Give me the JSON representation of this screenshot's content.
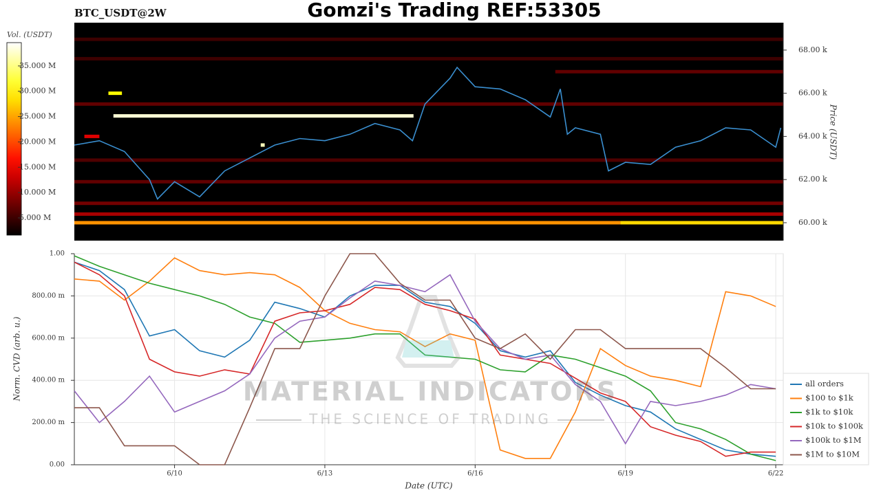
{
  "title": "Gomzi's Trading REF:53305",
  "watermark": {
    "title": "MATERIAL INDICATORS",
    "subtitle": "THE SCIENCE OF TRADING"
  },
  "chart_data": [
    {
      "type": "heatmap",
      "label": "BTC_USDT@2W",
      "ylabel": "Price (USDT)",
      "xlim": [
        8,
        22.15
      ],
      "ylim": [
        59170,
        69270
      ],
      "yticks": [
        {
          "value": 60000,
          "label": "60.00 k"
        },
        {
          "value": 62000,
          "label": "62.00 k"
        },
        {
          "value": 64000,
          "label": "64.00 k"
        },
        {
          "value": 66000,
          "label": "66.00 k"
        },
        {
          "value": 68000,
          "label": "68.00 k"
        }
      ],
      "colorbar": {
        "label": "Vol. (USDT)",
        "lim": [
          1600000,
          39600000
        ],
        "colormap": "hot",
        "ticks": [
          {
            "value": 5000000,
            "label": "5.000 M"
          },
          {
            "value": 10000000,
            "label": "10.000 M"
          },
          {
            "value": 15000000,
            "label": "15.000 M"
          },
          {
            "value": 20000000,
            "label": "20.000 M"
          },
          {
            "value": 25000000,
            "label": "25.000 M"
          },
          {
            "value": 30000000,
            "label": "30.000 M"
          },
          {
            "value": 35000000,
            "label": "35.000 M"
          }
        ]
      },
      "levels": [
        {
          "price": 60000,
          "volume": 24000000,
          "start": 8,
          "end": 18.9
        },
        {
          "price": 60000,
          "volume": 28000000,
          "start": 18.9,
          "end": 22.15
        },
        {
          "price": 60400,
          "volume": 11000000,
          "start": 8,
          "end": 22.15
        },
        {
          "price": 60900,
          "volume": 8000000,
          "start": 8,
          "end": 22.15
        },
        {
          "price": 61900,
          "volume": 7000000,
          "start": 8,
          "end": 22.15
        },
        {
          "price": 62900,
          "volume": 6000000,
          "start": 8,
          "end": 22.15
        },
        {
          "price": 64000,
          "volume": 14000000,
          "start": 8.2,
          "end": 8.5
        },
        {
          "price": 63600,
          "volume": 37000000,
          "start": 11.72,
          "end": 11.8
        },
        {
          "price": 64950,
          "volume": 38000000,
          "start": 8.78,
          "end": 14.77
        },
        {
          "price": 66000,
          "volume": 30000000,
          "start": 8.68,
          "end": 8.95
        },
        {
          "price": 65500,
          "volume": 7000000,
          "start": 8,
          "end": 22.15
        },
        {
          "price": 67000,
          "volume": 7000000,
          "start": 17.6,
          "end": 22.15
        },
        {
          "price": 67600,
          "volume": 5000000,
          "start": 8,
          "end": 22.15
        },
        {
          "price": 68500,
          "volume": 5000000,
          "start": 8,
          "end": 22.15
        }
      ],
      "series": [
        {
          "color": "#3a8fd0",
          "x": [
            8.0,
            8.5,
            9.0,
            9.5,
            9.66,
            10,
            10.5,
            11,
            11.5,
            12,
            12.5,
            13,
            13.5,
            14,
            14.5,
            14.75,
            15,
            15.5,
            15.64,
            16,
            16.5,
            17,
            17.5,
            17.7,
            17.84,
            18,
            18.5,
            18.66,
            19,
            19.5,
            20,
            20.5,
            21,
            21.5,
            22,
            22.1
          ],
          "values": [
            63600,
            63800,
            63300,
            62000,
            61100,
            61900,
            61200,
            62400,
            63000,
            63600,
            63900,
            63800,
            64100,
            64600,
            64300,
            63800,
            65500,
            66700,
            67200,
            66300,
            66200,
            65700,
            64900,
            66200,
            64100,
            64400,
            64100,
            62400,
            62800,
            62700,
            63500,
            63800,
            64400,
            64300,
            63500,
            64400
          ]
        }
      ]
    },
    {
      "type": "line",
      "xlabel": "Date (UTC)",
      "ylabel": "Norm. CVD (arb. u.)",
      "grid": true,
      "legend": "lower right",
      "xlim": [
        8,
        22.15
      ],
      "ylim": [
        0,
        1
      ],
      "xticks": [
        {
          "value": 10,
          "label": "6/10"
        },
        {
          "value": 13,
          "label": "6/13"
        },
        {
          "value": 16,
          "label": "6/16"
        },
        {
          "value": 19,
          "label": "6/19"
        },
        {
          "value": 22,
          "label": "6/22"
        }
      ],
      "yticks": [
        {
          "value": 0,
          "label": "0.00"
        },
        {
          "value": 0.2,
          "label": "200.00 m"
        },
        {
          "value": 0.4,
          "label": "400.00 m"
        },
        {
          "value": 0.6,
          "label": "600.00 m"
        },
        {
          "value": 0.8,
          "label": "800.00 m"
        },
        {
          "value": 1,
          "label": "1.00"
        }
      ],
      "x": [
        8,
        8.5,
        9,
        9.5,
        10,
        10.5,
        11,
        11.5,
        12,
        12.5,
        13,
        13.5,
        14,
        14.5,
        15,
        15.5,
        16,
        16.5,
        17,
        17.5,
        18,
        18.5,
        19,
        19.5,
        20,
        20.5,
        21,
        21.5,
        22
      ],
      "series": [
        {
          "name": "all orders",
          "color": "#1f77b4",
          "values": [
            0.96,
            0.92,
            0.83,
            0.61,
            0.64,
            0.54,
            0.51,
            0.59,
            0.77,
            0.74,
            0.7,
            0.8,
            0.85,
            0.85,
            0.77,
            0.75,
            0.67,
            0.54,
            0.51,
            0.54,
            0.39,
            0.33,
            0.28,
            0.25,
            0.17,
            0.12,
            0.07,
            0.05,
            0.04
          ]
        },
        {
          "name": "$100 to $1k",
          "color": "#ff7f0e",
          "values": [
            0.88,
            0.87,
            0.78,
            0.87,
            0.98,
            0.92,
            0.9,
            0.91,
            0.9,
            0.84,
            0.73,
            0.67,
            0.64,
            0.63,
            0.56,
            0.62,
            0.59,
            0.07,
            0.03,
            0.03,
            0.25,
            0.55,
            0.47,
            0.42,
            0.4,
            0.37,
            0.82,
            0.8,
            0.75
          ]
        },
        {
          "name": "$1k to $10k",
          "color": "#2ca02c",
          "values": [
            0.99,
            0.94,
            0.9,
            0.86,
            0.83,
            0.8,
            0.76,
            0.7,
            0.67,
            0.58,
            0.59,
            0.6,
            0.62,
            0.62,
            0.52,
            0.51,
            0.5,
            0.45,
            0.44,
            0.52,
            0.5,
            0.46,
            0.42,
            0.35,
            0.2,
            0.17,
            0.12,
            0.05,
            0.02
          ]
        },
        {
          "name": "$10k to $100k",
          "color": "#d62728",
          "values": [
            0.96,
            0.9,
            0.8,
            0.5,
            0.44,
            0.42,
            0.45,
            0.43,
            0.68,
            0.72,
            0.73,
            0.76,
            0.84,
            0.83,
            0.76,
            0.73,
            0.69,
            0.52,
            0.5,
            0.48,
            0.41,
            0.34,
            0.3,
            0.18,
            0.14,
            0.11,
            0.04,
            0.06,
            0.06
          ]
        },
        {
          "name": "$100k to $1M",
          "color": "#9467bd",
          "values": [
            0.35,
            0.2,
            0.3,
            0.42,
            0.25,
            0.3,
            0.35,
            0.43,
            0.6,
            0.68,
            0.7,
            0.79,
            0.87,
            0.85,
            0.82,
            0.9,
            0.68,
            0.55,
            0.5,
            0.52,
            0.38,
            0.3,
            0.1,
            0.3,
            0.28,
            0.3,
            0.33,
            0.38,
            0.36
          ]
        },
        {
          "name": "$1M to $10M",
          "color": "#8c564b",
          "values": [
            0.27,
            0.27,
            0.09,
            0.09,
            0.09,
            0,
            0,
            0.27,
            0.55,
            0.55,
            0.8,
            1.0,
            1.0,
            0.86,
            0.78,
            0.78,
            0.6,
            0.55,
            0.62,
            0.5,
            0.64,
            0.64,
            0.55,
            0.55,
            0.55,
            0.55,
            0.46,
            0.36,
            0.36
          ]
        }
      ]
    }
  ]
}
